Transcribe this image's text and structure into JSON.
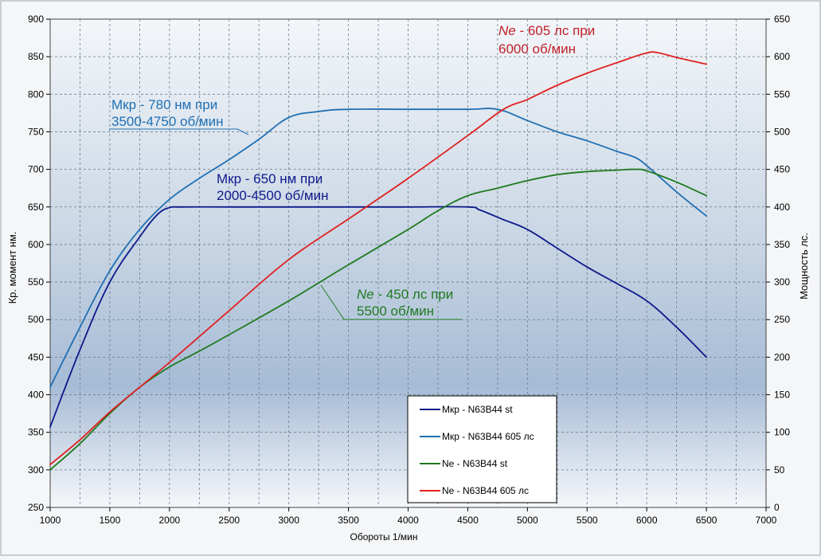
{
  "chart_data": {
    "type": "line",
    "xlabel": "Обороты  1/мин",
    "ylabel_left": "Кр. момент нм.",
    "ylabel_right": "Мощность  лс.",
    "xlim": [
      1000,
      7000
    ],
    "ylim_left": [
      250,
      900
    ],
    "ylim_right": [
      0,
      650
    ],
    "x_ticks": [
      1000,
      1500,
      2000,
      2500,
      3000,
      3500,
      4000,
      4500,
      5000,
      5500,
      6000,
      6500,
      7000
    ],
    "y_ticks_left": [
      250,
      300,
      350,
      400,
      450,
      500,
      550,
      600,
      650,
      700,
      750,
      800,
      850,
      900
    ],
    "y_ticks_right": [
      0,
      50,
      100,
      150,
      200,
      250,
      300,
      350,
      400,
      450,
      500,
      550,
      600,
      650
    ],
    "grid": true,
    "legend_position": "bottom-right",
    "series": [
      {
        "name": "Мкр - N63B44  st",
        "axis": "left",
        "color": "#0d1a8c",
        "points": [
          [
            1000,
            357
          ],
          [
            1250,
            460
          ],
          [
            1500,
            550
          ],
          [
            1750,
            610
          ],
          [
            1900,
            640
          ],
          [
            2000,
            649
          ],
          [
            2100,
            650
          ],
          [
            2500,
            650
          ],
          [
            3000,
            650
          ],
          [
            3500,
            650
          ],
          [
            4000,
            650
          ],
          [
            4500,
            650
          ],
          [
            4600,
            646
          ],
          [
            4800,
            633
          ],
          [
            5000,
            620
          ],
          [
            5250,
            595
          ],
          [
            5500,
            570
          ],
          [
            5750,
            548
          ],
          [
            6000,
            525
          ],
          [
            6250,
            490
          ],
          [
            6500,
            450
          ]
        ]
      },
      {
        "name": "Мкр - N63B44  605 лс",
        "axis": "left",
        "color": "#1f6fb4",
        "points": [
          [
            1000,
            410
          ],
          [
            1250,
            490
          ],
          [
            1500,
            565
          ],
          [
            1750,
            620
          ],
          [
            2000,
            660
          ],
          [
            2250,
            688
          ],
          [
            2500,
            713
          ],
          [
            2750,
            740
          ],
          [
            3000,
            769
          ],
          [
            3250,
            777
          ],
          [
            3500,
            780
          ],
          [
            4000,
            780
          ],
          [
            4500,
            780
          ],
          [
            4750,
            780
          ],
          [
            5000,
            765
          ],
          [
            5250,
            750
          ],
          [
            5500,
            738
          ],
          [
            5750,
            724
          ],
          [
            5900,
            716
          ],
          [
            6000,
            705
          ],
          [
            6250,
            670
          ],
          [
            6500,
            638
          ]
        ]
      },
      {
        "name": "Ne  - N63B44  st",
        "axis": "right",
        "color": "#1f7a1f",
        "points": [
          [
            1000,
            50
          ],
          [
            1250,
            85
          ],
          [
            1500,
            125
          ],
          [
            1750,
            160
          ],
          [
            2000,
            187
          ],
          [
            2250,
            208
          ],
          [
            2500,
            230
          ],
          [
            3000,
            275
          ],
          [
            3500,
            323
          ],
          [
            4000,
            370
          ],
          [
            4250,
            395
          ],
          [
            4500,
            415
          ],
          [
            4750,
            425
          ],
          [
            5000,
            435
          ],
          [
            5250,
            443
          ],
          [
            5500,
            447
          ],
          [
            5750,
            449
          ],
          [
            5900,
            450
          ],
          [
            6000,
            448
          ],
          [
            6250,
            433
          ],
          [
            6500,
            415
          ]
        ]
      },
      {
        "name": "Ne  - N63B44  605 лс",
        "axis": "right",
        "color": "#e02020",
        "points": [
          [
            1000,
            57
          ],
          [
            1250,
            90
          ],
          [
            1500,
            127
          ],
          [
            1750,
            160
          ],
          [
            2000,
            193
          ],
          [
            2500,
            262
          ],
          [
            3000,
            330
          ],
          [
            3500,
            384
          ],
          [
            4000,
            438
          ],
          [
            4500,
            495
          ],
          [
            4800,
            530
          ],
          [
            5000,
            543
          ],
          [
            5250,
            562
          ],
          [
            5500,
            578
          ],
          [
            5750,
            592
          ],
          [
            6000,
            605
          ],
          [
            6100,
            605
          ],
          [
            6250,
            599
          ],
          [
            6500,
            590
          ]
        ]
      }
    ],
    "annotations": [
      {
        "id": "ann-mkr-605-line1",
        "text": "Мкр - 780 нм при",
        "color": "#1f6fb4"
      },
      {
        "id": "ann-mkr-605-line2",
        "text": "3500-4750 об/мин",
        "color": "#1f6fb4"
      },
      {
        "id": "ann-mkr-st-line1",
        "text": "Мкр - 650 нм при",
        "color": "#0d1a8c"
      },
      {
        "id": "ann-mkr-st-line2",
        "text": "2000-4500 об/мин",
        "color": "#0d1a8c"
      },
      {
        "id": "ann-ne-st-prefix",
        "text": "Ne",
        "color": "#1f7a1f"
      },
      {
        "id": "ann-ne-st-line1",
        "text": " - 450 лс при",
        "color": "#1f7a1f"
      },
      {
        "id": "ann-ne-st-line2",
        "text": "5500 об/мин",
        "color": "#1f7a1f"
      },
      {
        "id": "ann-ne-605-prefix",
        "text": "Ne",
        "color": "#c0202a"
      },
      {
        "id": "ann-ne-605-line1",
        "text": " - 605 лс при",
        "color": "#c0202a"
      },
      {
        "id": "ann-ne-605-line2",
        "text": "6000 об/мин",
        "color": "#c0202a"
      }
    ]
  }
}
